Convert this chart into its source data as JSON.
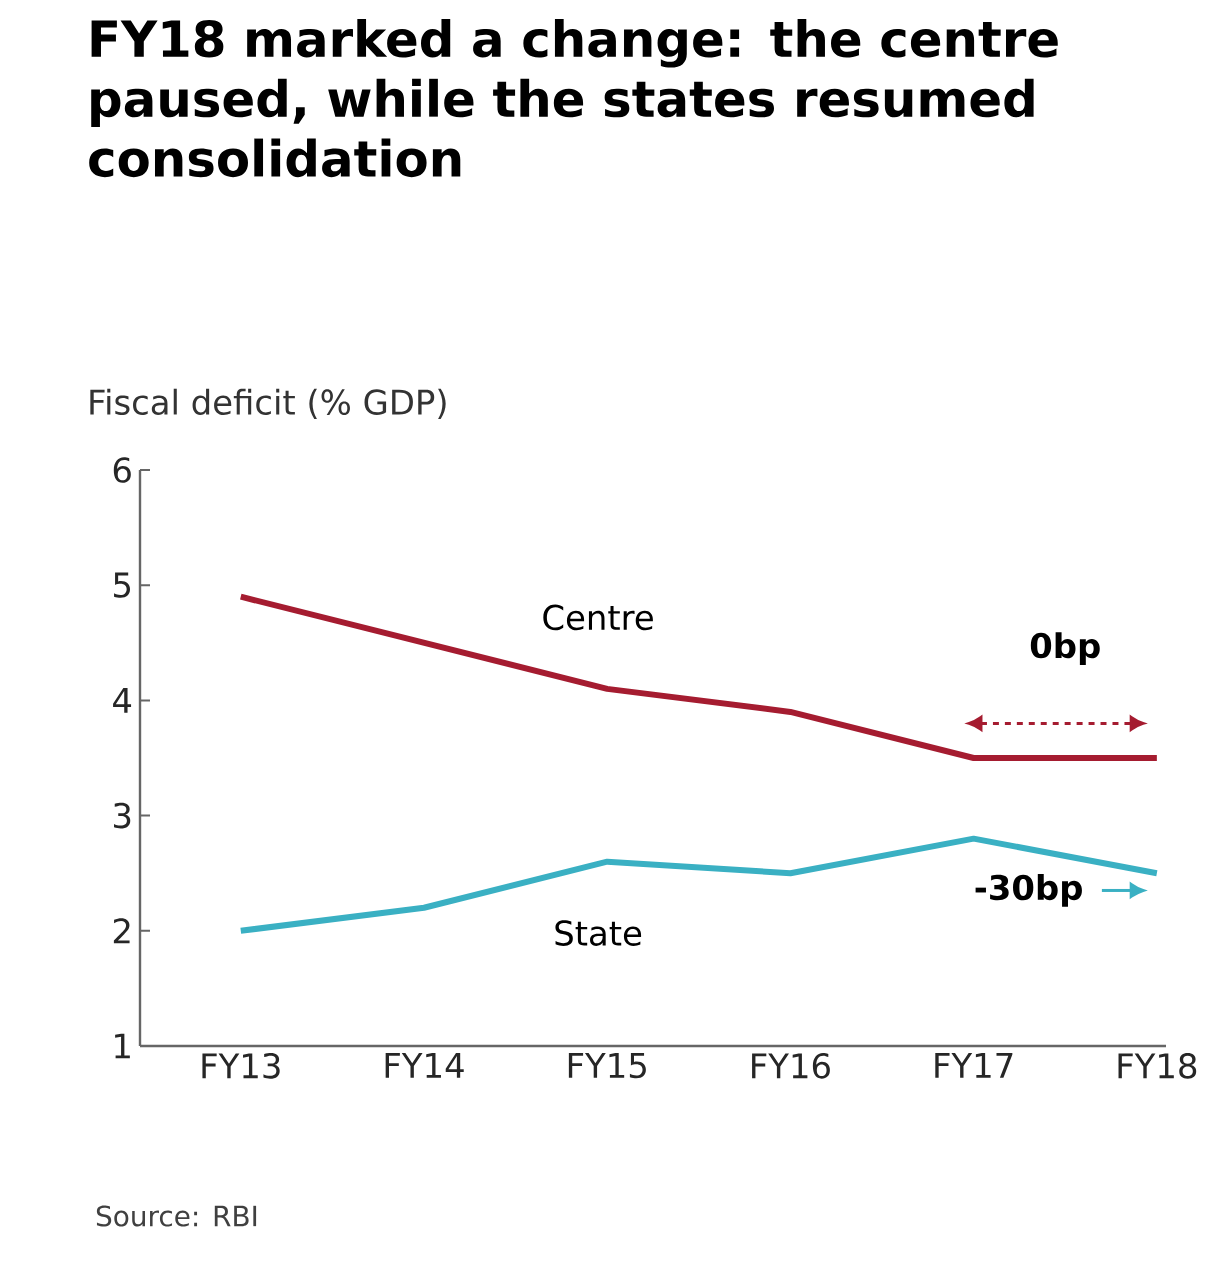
{
  "chart_data": {
    "type": "line",
    "title": "FY18 marked a change: the centre paused, while the states resumed consolidation",
    "ylabel": "Fiscal deficit (% GDP)",
    "categories": [
      "FY13",
      "FY14",
      "FY15",
      "FY16",
      "FY17",
      "FY18"
    ],
    "series": [
      {
        "name": "Centre",
        "color": "#a51c30",
        "values": [
          4.9,
          4.5,
          4.1,
          3.9,
          3.5,
          3.5
        ]
      },
      {
        "name": "State",
        "color": "#3ab0c3",
        "values": [
          2.0,
          2.2,
          2.6,
          2.5,
          2.8,
          2.5
        ]
      }
    ],
    "ylim": [
      1,
      6
    ],
    "yticks": [
      1,
      2,
      3,
      4,
      5,
      6
    ],
    "grid": false,
    "legend": false,
    "marker": "none",
    "line_style": "solid",
    "annotations": [
      "0bp",
      "-30bp",
      "Source: RBI"
    ]
  }
}
